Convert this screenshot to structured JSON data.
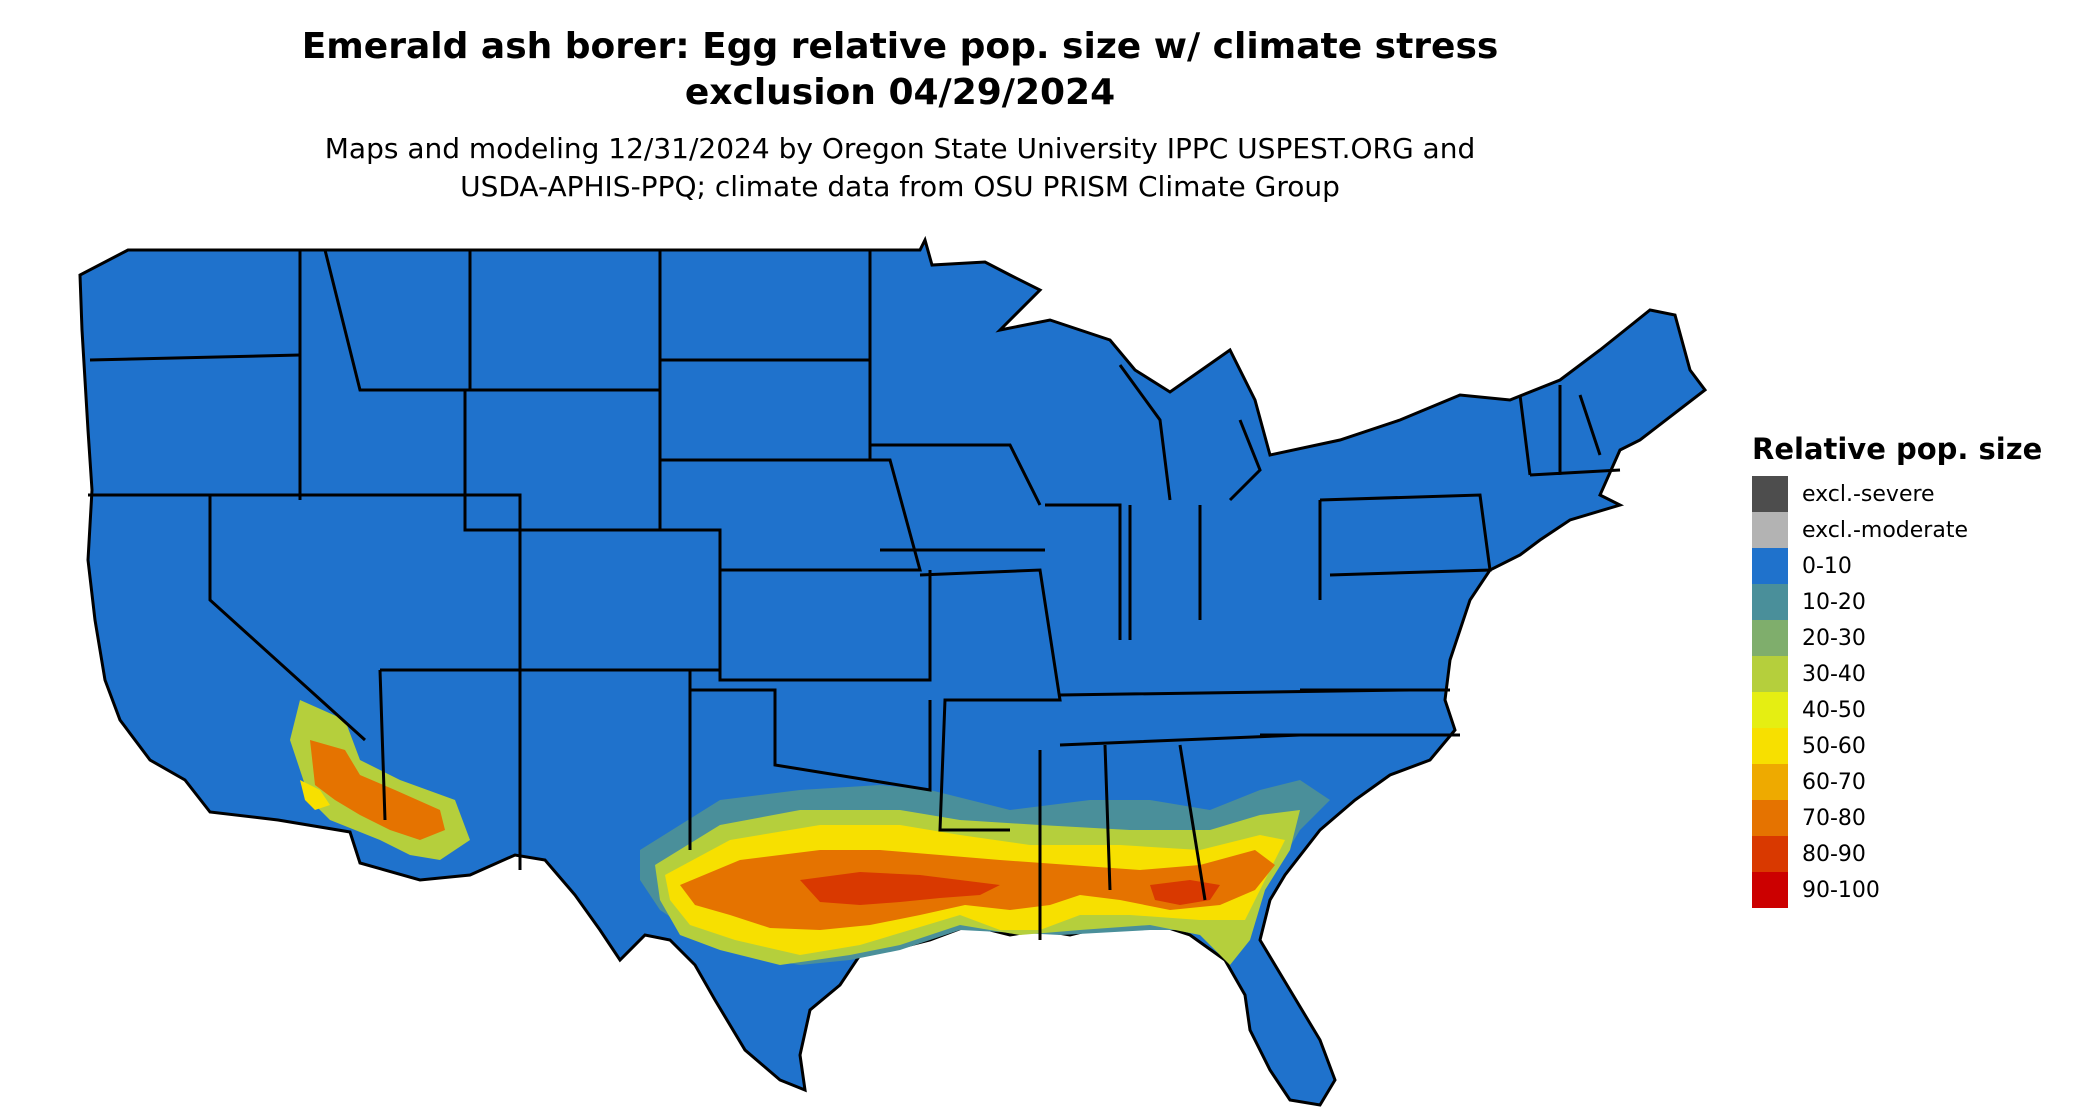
{
  "title_line1": "Emerald ash borer: Egg relative pop. size w/ climate stress",
  "title_line2": "exclusion 04/29/2024",
  "subtitle_line1": "Maps and modeling 12/31/2024 by Oregon State University IPPC USPEST.ORG and",
  "subtitle_line2": "USDA-APHIS-PPQ; climate data from OSU PRISM Climate Group",
  "legend": {
    "title": "Relative pop. size",
    "items": [
      {
        "label": "excl.-severe",
        "color": "#4d4d4d"
      },
      {
        "label": "excl.-moderate",
        "color": "#b3b3b3"
      },
      {
        "label": "0-10",
        "color": "#1f72cc"
      },
      {
        "label": "10-20",
        "color": "#4a8f9a"
      },
      {
        "label": "20-30",
        "color": "#7fae6c"
      },
      {
        "label": "30-40",
        "color": "#b5cf3c"
      },
      {
        "label": "40-50",
        "color": "#e5ee12"
      },
      {
        "label": "50-60",
        "color": "#f7e000"
      },
      {
        "label": "60-70",
        "color": "#eeaa00"
      },
      {
        "label": "70-80",
        "color": "#e57300"
      },
      {
        "label": "80-90",
        "color": "#d93900"
      },
      {
        "label": "90-100",
        "color": "#cc0000"
      }
    ]
  },
  "colors": {
    "base": "#1f72cc",
    "border": "#000000"
  }
}
